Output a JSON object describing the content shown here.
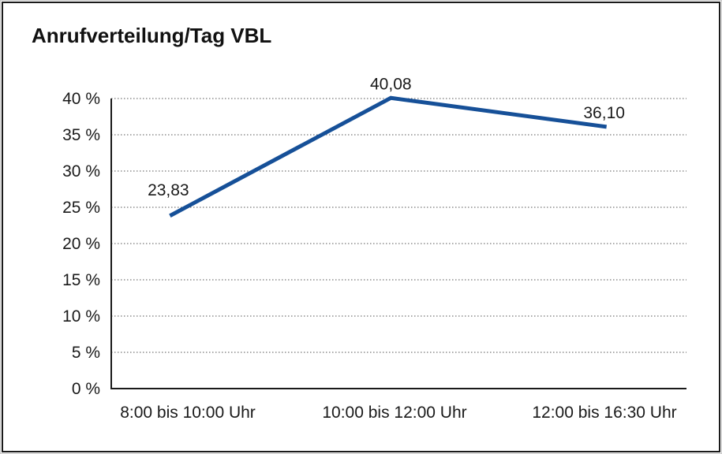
{
  "title": "Anrufverteilung/Tag VBL",
  "chart_data": {
    "type": "line",
    "title": "Anrufverteilung/Tag VBL",
    "categories": [
      "8:00 bis 10:00 Uhr",
      "10:00 bis 12:00 Uhr",
      "12:00 bis 16:30 Uhr"
    ],
    "series": [
      {
        "name": "Anrufverteilung/Tag VBL",
        "values": [
          23.83,
          40.08,
          36.1
        ]
      }
    ],
    "data_labels": [
      "23,83",
      "40,08",
      "36,10"
    ],
    "y_ticks": [
      "0 %",
      "5 %",
      "10 %",
      "15 %",
      "20 %",
      "25 %",
      "30 %",
      "35 %",
      "40 %"
    ],
    "ylim": [
      0,
      40
    ],
    "y_tick_step": 5,
    "grid": "horizontal-dotted",
    "legend": "none",
    "line_color": "#165098",
    "axis_color": "#1a1a1a",
    "text_color": "#1a1a1a"
  }
}
